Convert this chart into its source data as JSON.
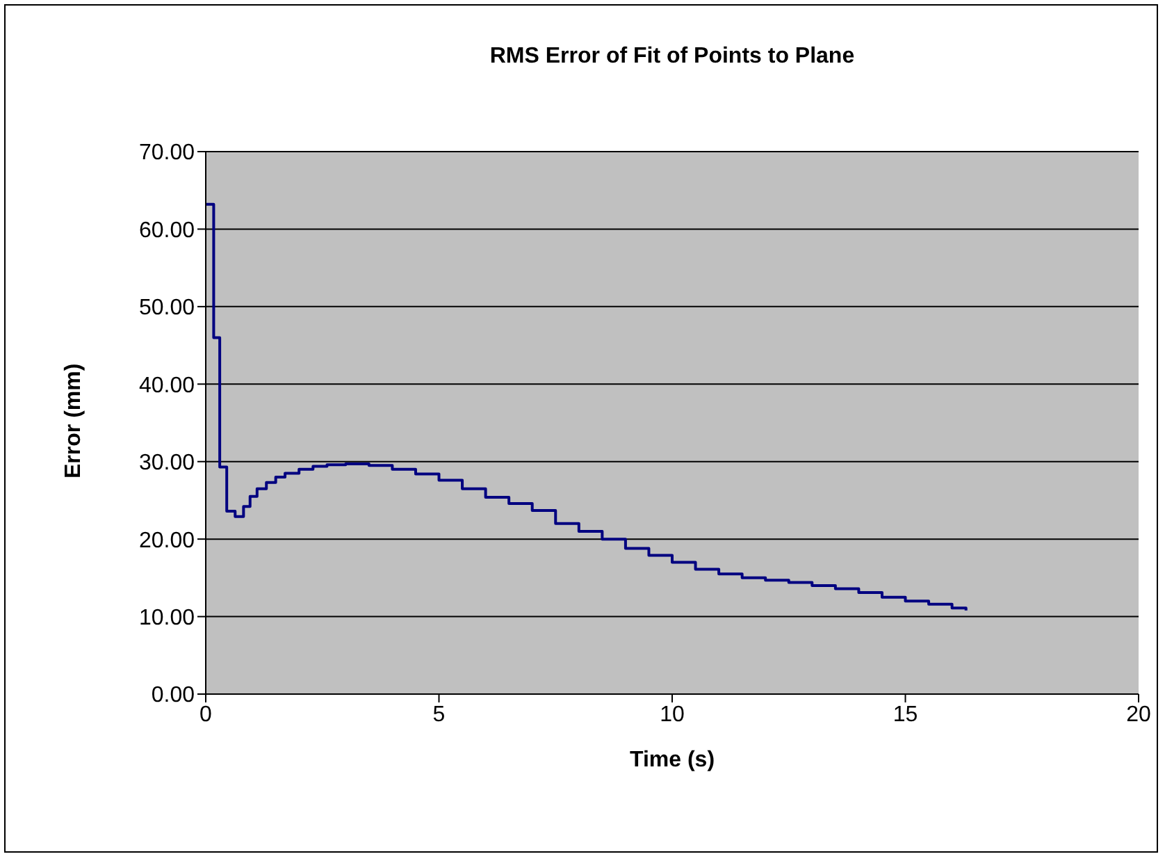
{
  "chart_data": {
    "type": "step",
    "title": "RMS Error of Fit of Points to Plane",
    "xlabel": "Time (s)",
    "ylabel": "Error (mm)",
    "x": [
      0,
      0.17,
      0.3,
      0.45,
      0.63,
      0.81,
      0.95,
      1.1,
      1.3,
      1.5,
      1.7,
      2,
      2.3,
      2.6,
      3,
      3.5,
      4,
      4.5,
      5,
      5.5,
      6,
      6.5,
      7,
      7.5,
      8,
      8.5,
      9,
      9.5,
      10,
      10.5,
      11,
      11.5,
      12,
      12.5,
      13,
      13.5,
      14,
      14.5,
      15,
      15.5,
      16,
      16.3
    ],
    "series": [
      {
        "color": "#000080",
        "values": [
          63.2,
          46,
          29.3,
          23.6,
          22.9,
          24.2,
          25.5,
          26.5,
          27.3,
          28,
          28.5,
          29,
          29.4,
          29.6,
          29.7,
          29.5,
          29,
          28.4,
          27.6,
          26.5,
          25.4,
          24.6,
          23.7,
          22,
          21,
          20,
          18.8,
          17.9,
          17,
          16.1,
          15.5,
          15,
          14.7,
          14.4,
          14,
          13.6,
          13.1,
          12.5,
          12,
          11.6,
          11.1,
          10.8
        ]
      }
    ],
    "xlim": [
      0,
      20
    ],
    "xticks": [
      0,
      5,
      10,
      15,
      20
    ],
    "ylim": [
      0,
      70
    ],
    "yticks": [
      {
        "value": 0,
        "label": "0.00"
      },
      {
        "value": 10,
        "label": "10.00"
      },
      {
        "value": 20,
        "label": "20.00"
      },
      {
        "value": 30,
        "label": "30.00"
      },
      {
        "value": 40,
        "label": "40.00"
      },
      {
        "value": 50,
        "label": "50.00"
      },
      {
        "value": 60,
        "label": "60.00"
      },
      {
        "value": 70,
        "label": "70.00"
      }
    ],
    "grid": "y",
    "legend": false,
    "marker": "none",
    "line_style": "solid"
  }
}
